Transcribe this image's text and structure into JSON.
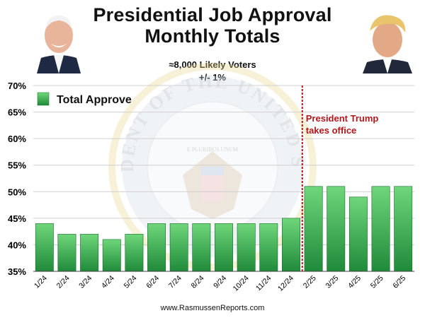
{
  "header": {
    "title_line1": "Presidential Job Approval",
    "title_line2": "Monthly Totals",
    "subtitle_line1": "≈8,000 Likely Voters",
    "subtitle_line2": "+/- 1%"
  },
  "footer": {
    "source": "www.RasmussenReports.com"
  },
  "colors": {
    "bar_top": "#6fd67a",
    "bar_bottom": "#1f8a3a",
    "bar_edge": "#176b2c",
    "annotation": "#b3161b",
    "grid": "#d0d0d0",
    "seal": "#b8c2cf"
  },
  "seal": {
    "text": "PRESIDENT OF THE UNITED STATES",
    "motto": "E PLURIBUS UNUM"
  },
  "chart_data": {
    "type": "bar",
    "categories": [
      "1/24",
      "2/24",
      "3/24",
      "4/24",
      "5/24",
      "6/24",
      "7/24",
      "8/24",
      "9/24",
      "10/24",
      "11/24",
      "12/24",
      "2/25",
      "3/25",
      "4/25",
      "5/25",
      "6/25"
    ],
    "series": [
      {
        "name": "Total Approve",
        "values": [
          44,
          42,
          42,
          41,
          42,
          44,
          44,
          44,
          44,
          44,
          44,
          45,
          51,
          51,
          49,
          51,
          51
        ]
      }
    ],
    "ylim": [
      35,
      70
    ],
    "yticks": [
      35,
      40,
      45,
      50,
      55,
      60,
      65,
      70
    ],
    "ytick_labels": [
      "35%",
      "40%",
      "45%",
      "50%",
      "55%",
      "60%",
      "65%",
      "70%"
    ],
    "grid": true,
    "legend": {
      "position": "top-left"
    },
    "annotation": {
      "after_category": "12/24",
      "line1": "President Trump",
      "line2": "takes office"
    }
  }
}
